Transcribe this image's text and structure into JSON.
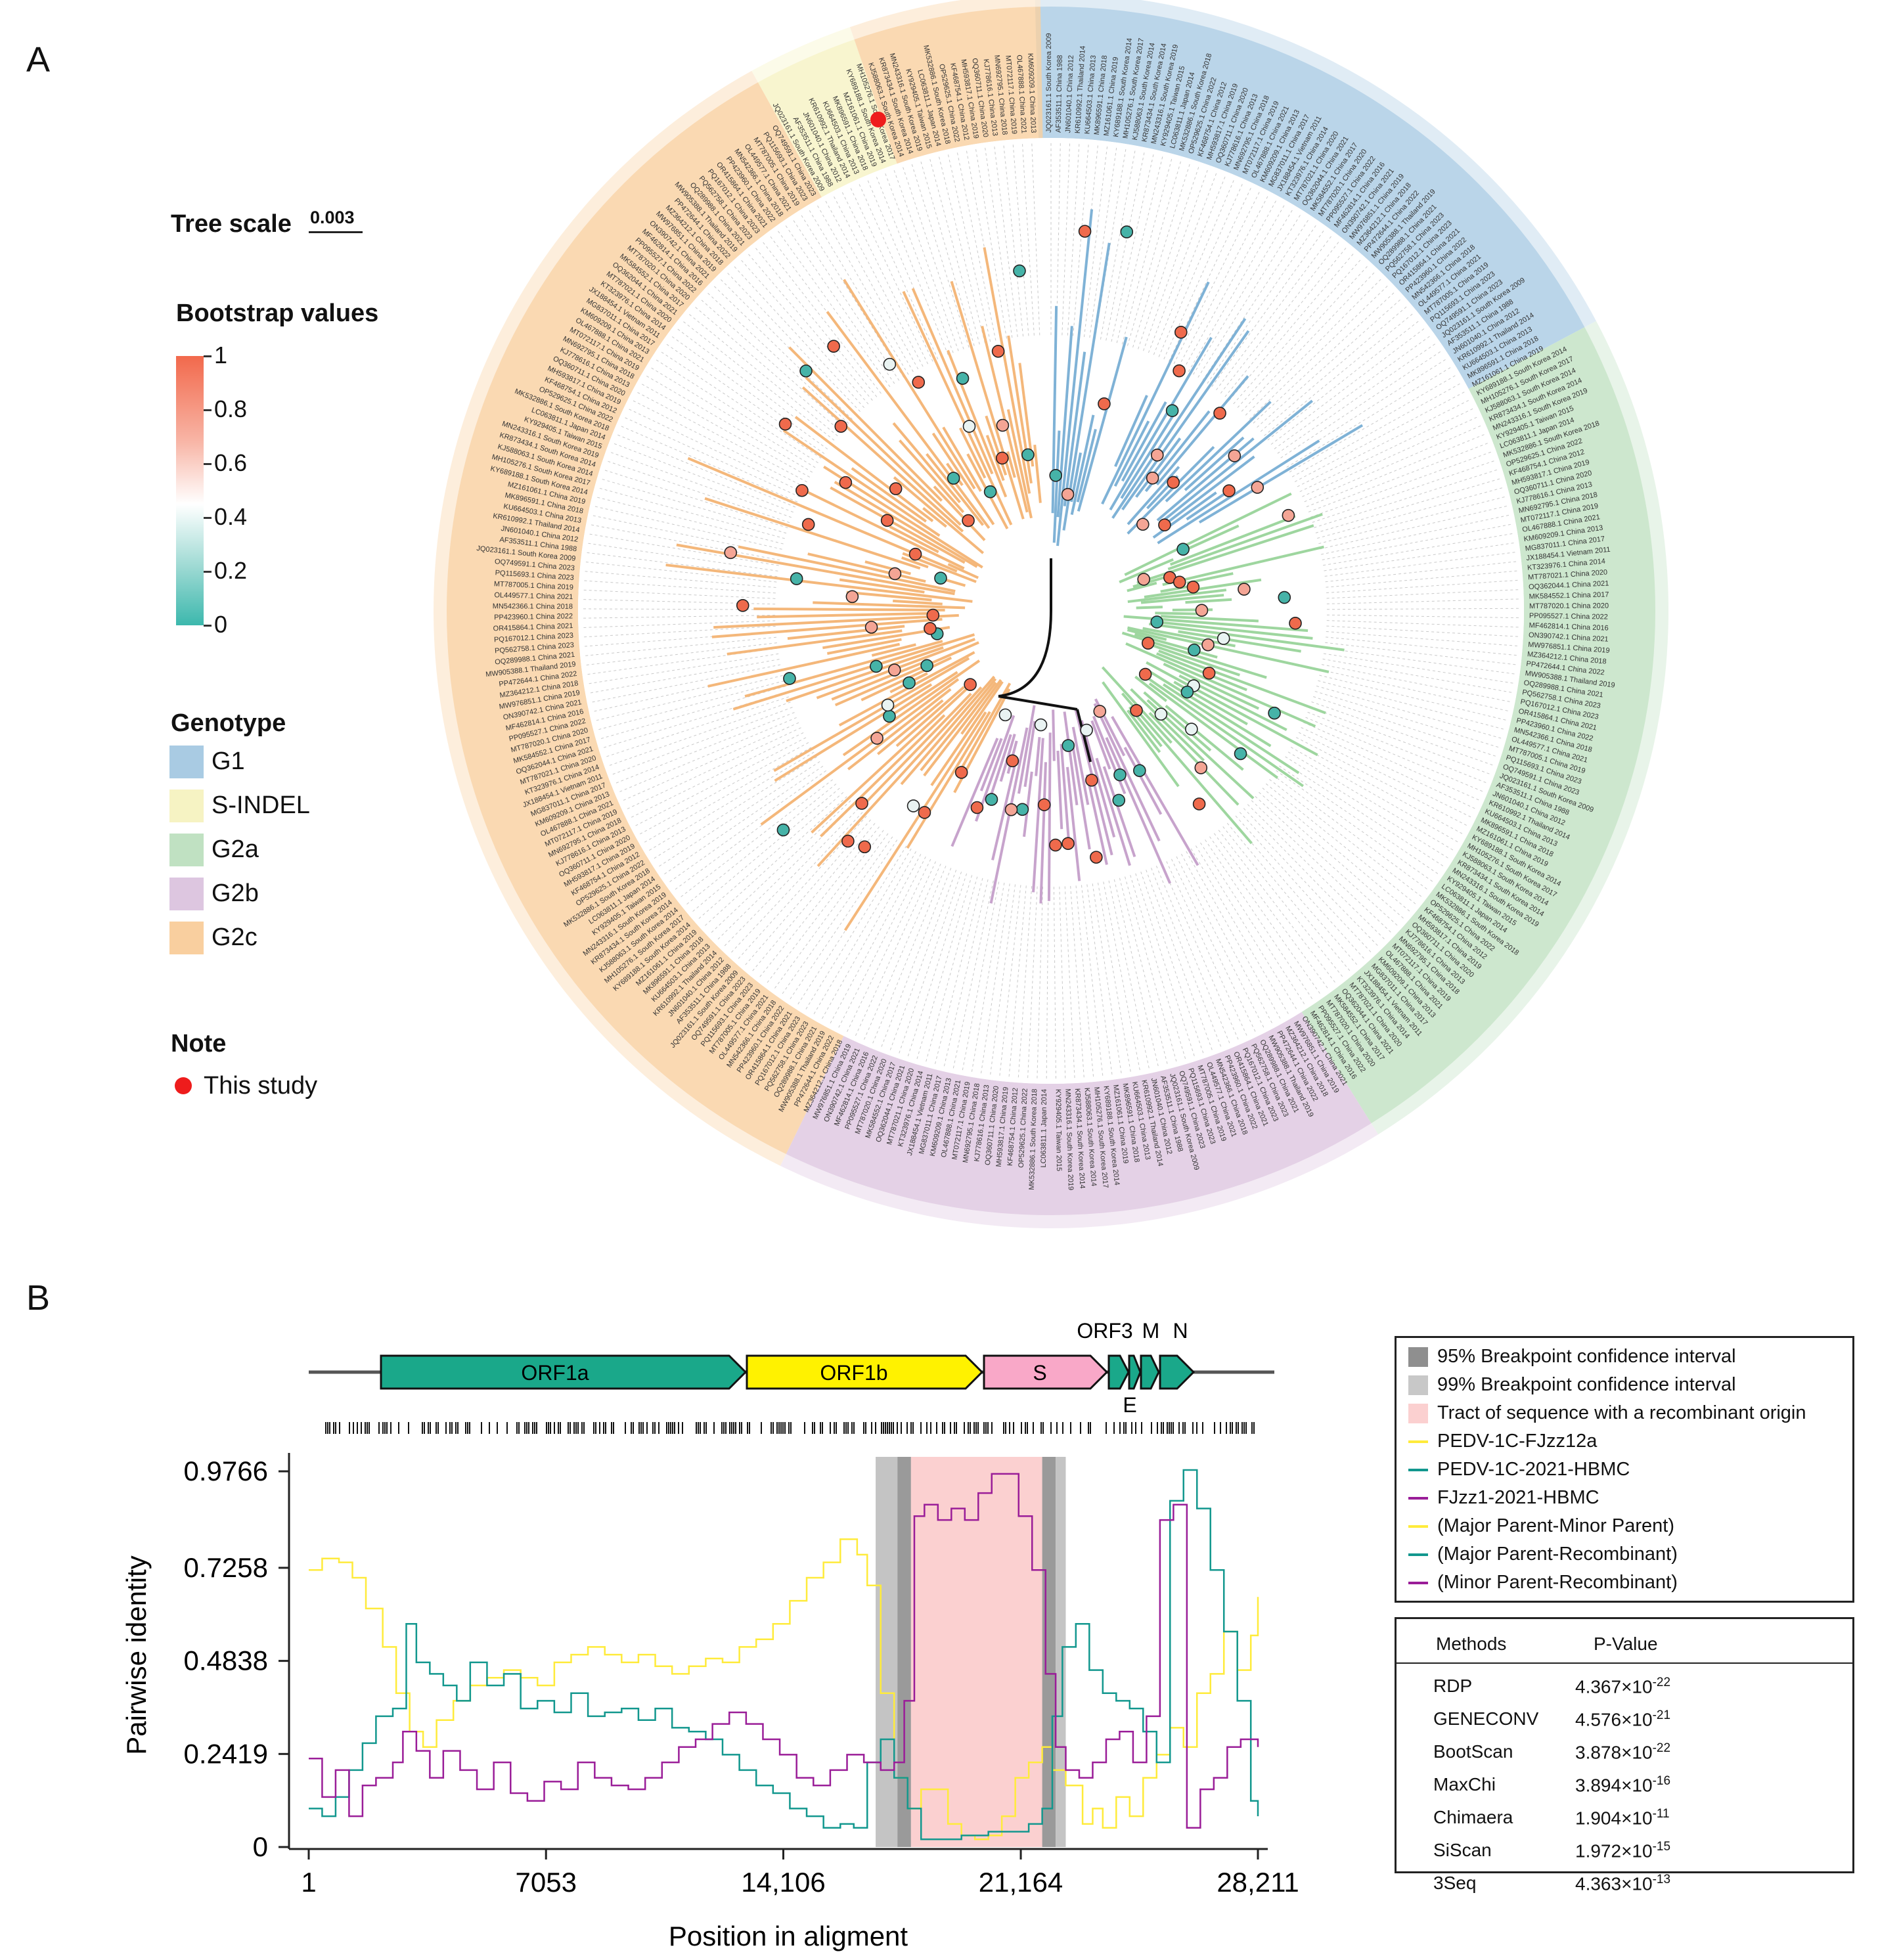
{
  "panels": {
    "a": "A",
    "b": "B"
  },
  "tree_legend": {
    "tree_scale_label": "Tree scale",
    "tree_scale_value": "0.003",
    "bootstrap_title": "Bootstrap values",
    "bootstrap_ticks": [
      "1",
      "0.8",
      "0.6",
      "0.4",
      "0.2",
      "0"
    ],
    "genotype_title": "Genotype",
    "genotypes": [
      {
        "label": "G1",
        "color": "#a9cbe3"
      },
      {
        "label": "S-INDEL",
        "color": "#f6f3c3"
      },
      {
        "label": "G2a",
        "color": "#c0e1c2"
      },
      {
        "label": "G2b",
        "color": "#ddc6e0"
      },
      {
        "label": "G2c",
        "color": "#f9cf9f"
      }
    ],
    "note_title": "Note",
    "note_label": "This study"
  },
  "tree_leaf_labels": [
    "JQ023161.1 South Korea 2009",
    "AF353511.1 China 1988",
    "JN601040.1 China 2012",
    "KR610992.1 Thailand 2014",
    "KU664503.1 China 2013",
    "MK896591.1 China 2018",
    "MZ161061.1 China 2019",
    "KY689188.1 South Korea 2014",
    "MH105276.1 South Korea 2017",
    "KJ588063.1 South Korea 2014",
    "KR873434.1 South Korea 2014",
    "MN243316.1 South Korea 2019",
    "KY929405.1 Taiwan 2015",
    "LC063811.1 Japan 2014",
    "MK532886.1 South Korea 2018",
    "OP529625.1 China 2022",
    "KF468754.1 China 2012",
    "MH593817.1 China 2019",
    "OQ360711.1 China 2020",
    "KJ778616.1 China 2013",
    "MN692795.1 China 2018",
    "MT072117.1 China 2019",
    "OL467888.1 China 2021",
    "KM609209.1 China 2013",
    "MG837011.1 China 2017",
    "JX188454.1 Vietnam 2011",
    "KT323976.1 China 2014",
    "MT787021.1 China 2020",
    "OQ362044.1 China 2021",
    "MK584552.1 China 2017",
    "MT787020.1 China 2020",
    "PP095527.1 China 2022",
    "MF462814.1 China 2016",
    "ON390742.1 China 2021",
    "MW976851.1 China 2019",
    "MZ364212.1 China 2018",
    "PP472644.1 China 2022",
    "MW905388.1 Thailand 2019",
    "OQ289988.1 China 2021",
    "PQ562758.1 China 2023",
    "PQ167012.1 China 2023",
    "OR415864.1 China 2021",
    "PP423960.1 China 2022",
    "MN542366.1 China 2018",
    "OL449577.1 China 2021",
    "MT787005.1 China 2019",
    "PQ115693.1 China 2023",
    "OQ749591.1 China 2023"
  ],
  "genome": {
    "genes": [
      "ORF1a",
      "ORF1b",
      "S",
      "ORF3",
      "E",
      "M",
      "N"
    ]
  },
  "chart_data": {
    "type": "line",
    "xlabel": "Position in aligment",
    "ylabel": "Pairwise identity",
    "x_ticks": [
      "1",
      "7053",
      "14,106",
      "21,164",
      "28,211"
    ],
    "x_tick_values": [
      1,
      7053,
      14106,
      21164,
      28211
    ],
    "y_ticks": [
      "0.9766",
      "0.7258",
      "0.4838",
      "0.2419",
      "0"
    ],
    "y_tick_values": [
      0.9766,
      0.7258,
      0.4838,
      0.2419,
      0
    ],
    "xlim": [
      1,
      28211
    ],
    "ylim": [
      0,
      0.9766
    ],
    "regions": [
      {
        "name": "99% Breakpoint confidence interval",
        "x0": 16850,
        "x1": 17900,
        "color": "#c4c4c4"
      },
      {
        "name": "95% Breakpoint confidence interval",
        "x0": 17500,
        "x1": 17900,
        "color": "#9a9a9a"
      },
      {
        "name": "Tract of sequence with a recombinant origin",
        "x0": 17900,
        "x1": 21800,
        "color": "#fbd0d0"
      },
      {
        "name": "95% Breakpoint confidence interval",
        "x0": 21800,
        "x1": 22200,
        "color": "#9a9a9a"
      },
      {
        "name": "99% Breakpoint confidence interval",
        "x0": 22200,
        "x1": 22500,
        "color": "#c4c4c4"
      }
    ],
    "series": [
      {
        "name": "(Major Parent-Minor Parent)",
        "color": "#ffeb3b",
        "x": [
          1,
          400,
          900,
          1300,
          1700,
          2200,
          2600,
          3000,
          3400,
          3800,
          4300,
          4800,
          5300,
          5800,
          6300,
          6800,
          7300,
          7800,
          8300,
          8800,
          9300,
          9800,
          10300,
          10800,
          11300,
          11800,
          12300,
          12800,
          13300,
          13800,
          14300,
          14800,
          15300,
          15800,
          16300,
          16600,
          17000,
          17400,
          17800,
          18200,
          18600,
          19000,
          19400,
          19800,
          20200,
          20600,
          21000,
          21400,
          21800,
          22100,
          22500,
          23000,
          23300,
          23600,
          24000,
          24400,
          24800,
          25200,
          25600,
          26000,
          26400,
          26800,
          27200,
          27600,
          28000,
          28211
        ],
        "y": [
          0.72,
          0.75,
          0.74,
          0.7,
          0.62,
          0.52,
          0.4,
          0.3,
          0.26,
          0.33,
          0.38,
          0.42,
          0.44,
          0.46,
          0.44,
          0.42,
          0.48,
          0.5,
          0.52,
          0.5,
          0.48,
          0.5,
          0.47,
          0.45,
          0.47,
          0.49,
          0.48,
          0.52,
          0.54,
          0.58,
          0.64,
          0.7,
          0.74,
          0.8,
          0.76,
          0.68,
          0.4,
          0.18,
          0.1,
          0.15,
          0.15,
          0.06,
          0.03,
          0.02,
          0.03,
          0.08,
          0.18,
          0.22,
          0.26,
          0.2,
          0.16,
          0.06,
          0.1,
          0.05,
          0.13,
          0.08,
          0.18,
          0.24,
          0.31,
          0.26,
          0.4,
          0.45,
          0.56,
          0.46,
          0.55,
          0.65
        ]
      },
      {
        "name": "(Major Parent-Recombinant)",
        "color": "#12978e",
        "x": [
          1,
          400,
          800,
          1200,
          1600,
          2000,
          2500,
          2900,
          3200,
          3600,
          4000,
          4400,
          4800,
          5300,
          5800,
          6300,
          6800,
          7300,
          7800,
          8300,
          8800,
          9300,
          9800,
          10300,
          10800,
          11300,
          11800,
          12300,
          12800,
          13300,
          13800,
          14300,
          14800,
          15300,
          15800,
          16200,
          16600,
          17000,
          17400,
          17800,
          18200,
          18600,
          19000,
          19400,
          19800,
          20200,
          20600,
          21000,
          21400,
          21800,
          22100,
          22400,
          22800,
          23200,
          23600,
          24000,
          24400,
          24800,
          25200,
          25600,
          26000,
          26400,
          26800,
          27200,
          27600,
          28000,
          28211
        ],
        "y": [
          0.1,
          0.08,
          0.13,
          0.2,
          0.27,
          0.34,
          0.36,
          0.58,
          0.48,
          0.45,
          0.42,
          0.38,
          0.48,
          0.42,
          0.45,
          0.36,
          0.38,
          0.35,
          0.4,
          0.34,
          0.35,
          0.36,
          0.33,
          0.36,
          0.31,
          0.3,
          0.28,
          0.24,
          0.2,
          0.16,
          0.14,
          0.1,
          0.08,
          0.05,
          0.06,
          0.05,
          0.22,
          0.28,
          0.18,
          0.1,
          0.02,
          0.02,
          0.02,
          0.03,
          0.03,
          0.04,
          0.04,
          0.04,
          0.06,
          0.1,
          0.34,
          0.52,
          0.58,
          0.46,
          0.4,
          0.38,
          0.36,
          0.3,
          0.22,
          0.9,
          0.98,
          0.88,
          0.72,
          0.56,
          0.38,
          0.12,
          0.08
        ]
      },
      {
        "name": "(Minor Parent-Recombinant)",
        "color": "#9a1d98",
        "x": [
          1,
          400,
          800,
          1200,
          1600,
          2000,
          2500,
          2800,
          3200,
          3600,
          4000,
          4500,
          5000,
          5500,
          6000,
          6500,
          7000,
          7500,
          8000,
          8500,
          9000,
          9500,
          10000,
          10500,
          11000,
          11500,
          12000,
          12500,
          13000,
          13500,
          14000,
          14500,
          15000,
          15500,
          16000,
          16500,
          17000,
          17400,
          17700,
          18000,
          18300,
          18700,
          19100,
          19500,
          19900,
          20300,
          20700,
          21100,
          21500,
          21900,
          22200,
          22500,
          22900,
          23300,
          23700,
          24100,
          24500,
          24900,
          25300,
          25700,
          26100,
          26500,
          26900,
          27300,
          27700,
          28211
        ],
        "y": [
          0.23,
          0.13,
          0.2,
          0.08,
          0.16,
          0.18,
          0.22,
          0.3,
          0.25,
          0.18,
          0.25,
          0.2,
          0.15,
          0.22,
          0.14,
          0.12,
          0.17,
          0.15,
          0.22,
          0.18,
          0.16,
          0.15,
          0.18,
          0.22,
          0.26,
          0.28,
          0.32,
          0.35,
          0.32,
          0.28,
          0.24,
          0.18,
          0.16,
          0.2,
          0.24,
          0.22,
          0.2,
          0.22,
          0.38,
          0.86,
          0.89,
          0.85,
          0.88,
          0.85,
          0.92,
          0.97,
          0.97,
          0.86,
          0.72,
          0.45,
          0.26,
          0.2,
          0.18,
          0.22,
          0.28,
          0.3,
          0.22,
          0.34,
          0.85,
          0.89,
          0.05,
          0.15,
          0.18,
          0.26,
          0.28,
          0.26
        ]
      }
    ]
  },
  "legend_box": [
    {
      "label": "95% Breakpoint confidence interval",
      "type": "square",
      "color": "#8f8f8f"
    },
    {
      "label": "99% Breakpoint confidence interval",
      "type": "square",
      "color": "#c8c8c8"
    },
    {
      "label": "Tract of sequence with a recombinant origin",
      "type": "square",
      "color": "#fbd0d0"
    },
    {
      "label": "PEDV-1C-FJzz12a",
      "type": "line",
      "color": "#ffeb3b"
    },
    {
      "label": "PEDV-1C-2021-HBMC",
      "type": "line",
      "color": "#12978e"
    },
    {
      "label": "FJzz1-2021-HBMC",
      "type": "line",
      "color": "#9a1d98"
    },
    {
      "label": "(Major Parent-Minor Parent)",
      "type": "line",
      "color": "#ffeb3b"
    },
    {
      "label": "(Major Parent-Recombinant)",
      "type": "line",
      "color": "#12978e"
    },
    {
      "label": "(Minor Parent-Recombinant)",
      "type": "line",
      "color": "#9a1d98"
    }
  ],
  "pvalue_table": {
    "headers": [
      "Methods",
      "P-Value"
    ],
    "rows": [
      {
        "method": "RDP",
        "mant": "4.367",
        "exp": "-22"
      },
      {
        "method": "GENECONV",
        "mant": "4.576",
        "exp": "-21"
      },
      {
        "method": "BootScan",
        "mant": "3.878",
        "exp": "-22"
      },
      {
        "method": "MaxChi",
        "mant": "3.894",
        "exp": "-16"
      },
      {
        "method": "Chimaera",
        "mant": "1.904",
        "exp": "-11"
      },
      {
        "method": "SiScan",
        "mant": "1.972",
        "exp": "-15"
      },
      {
        "method": "3Seq",
        "mant": "4.363",
        "exp": "-13"
      }
    ]
  }
}
